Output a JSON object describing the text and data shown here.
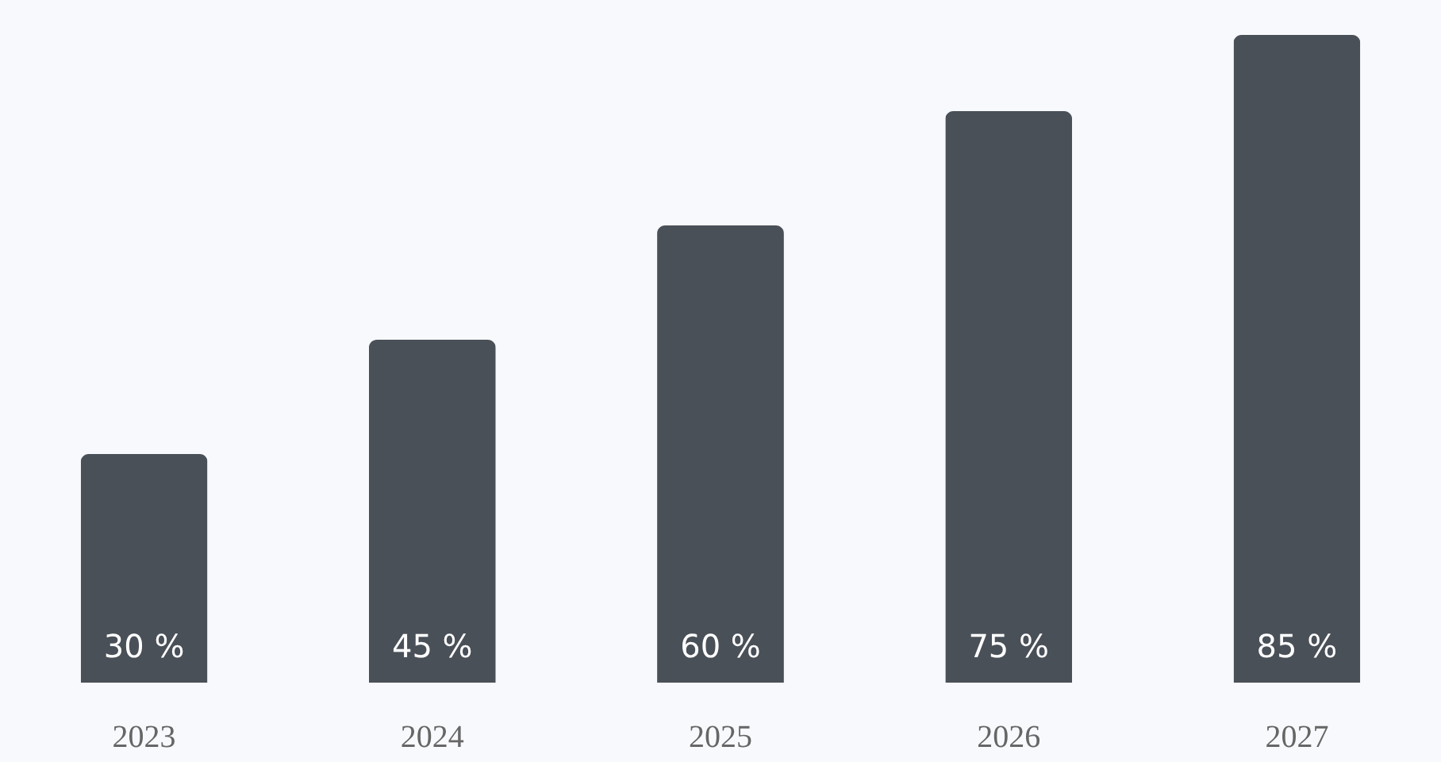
{
  "chart_data": {
    "type": "bar",
    "categories": [
      "2023",
      "2024",
      "2025",
      "2026",
      "2027"
    ],
    "values": [
      30,
      45,
      60,
      75,
      85
    ],
    "value_labels": [
      "30 %",
      "45 %",
      "60 %",
      "75 %",
      "85 %"
    ],
    "color": "#4a5058",
    "grid": false
  }
}
